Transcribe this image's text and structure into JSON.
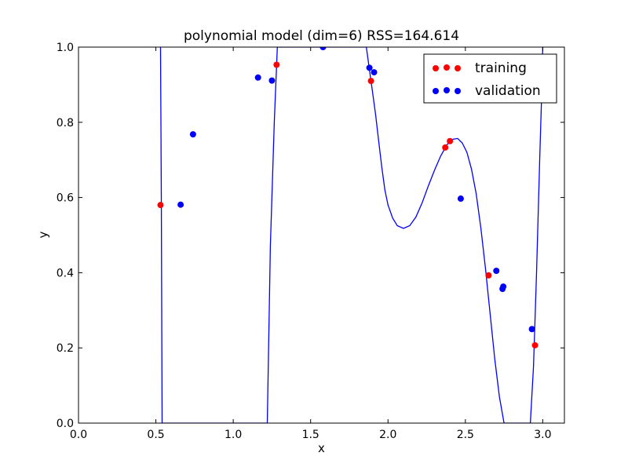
{
  "chart_data": {
    "type": "scatter",
    "title": "polynomial model (dim=6) RSS=164.614",
    "xlabel": "x",
    "ylabel": "y",
    "xlim": [
      0.0,
      3.14
    ],
    "ylim": [
      0.0,
      1.0
    ],
    "xticks": [
      "0.0",
      "0.5",
      "1.0",
      "1.5",
      "2.0",
      "2.5",
      "3.0"
    ],
    "xtick_values": [
      0.0,
      0.5,
      1.0,
      1.5,
      2.0,
      2.5,
      3.0
    ],
    "yticks": [
      "0.0",
      "0.2",
      "0.4",
      "0.6",
      "0.8",
      "1.0"
    ],
    "ytick_values": [
      0.0,
      0.2,
      0.4,
      0.6,
      0.8,
      1.0
    ],
    "grid": false,
    "legend_position": "top-right",
    "series": [
      {
        "name": "training",
        "color": "#ff0000",
        "points": [
          [
            0.53,
            0.58
          ],
          [
            1.28,
            0.953
          ],
          [
            1.89,
            0.91
          ],
          [
            2.37,
            0.733
          ],
          [
            2.4,
            0.75
          ],
          [
            2.65,
            0.393
          ],
          [
            2.95,
            0.207
          ]
        ]
      },
      {
        "name": "validation",
        "color": "#0000ff",
        "points": [
          [
            0.66,
            0.581
          ],
          [
            0.74,
            0.768
          ],
          [
            1.16,
            0.919
          ],
          [
            1.25,
            0.911
          ],
          [
            1.58,
            1.0
          ],
          [
            1.88,
            0.945
          ],
          [
            1.91,
            0.933
          ],
          [
            2.47,
            0.597
          ],
          [
            2.7,
            0.405
          ],
          [
            2.74,
            0.357
          ],
          [
            2.745,
            0.363
          ],
          [
            2.93,
            0.25
          ]
        ]
      },
      {
        "name": "polynomial model",
        "kind": "line",
        "color": "#0000ff",
        "points": [
          [
            0.53,
            1.0
          ],
          [
            0.535,
            0.6
          ],
          [
            0.54,
            0.0
          ],
          [
            1.22,
            0.0
          ],
          [
            1.24,
            0.47
          ],
          [
            1.265,
            0.8
          ],
          [
            1.285,
            1.0
          ],
          [
            1.86,
            1.0
          ],
          [
            1.88,
            0.94
          ],
          [
            1.9,
            0.88
          ],
          [
            1.92,
            0.82
          ],
          [
            1.94,
            0.75
          ],
          [
            1.96,
            0.68
          ],
          [
            1.98,
            0.62
          ],
          [
            2.0,
            0.58
          ],
          [
            2.03,
            0.545
          ],
          [
            2.06,
            0.525
          ],
          [
            2.1,
            0.518
          ],
          [
            2.14,
            0.525
          ],
          [
            2.18,
            0.548
          ],
          [
            2.22,
            0.585
          ],
          [
            2.26,
            0.63
          ],
          [
            2.3,
            0.672
          ],
          [
            2.34,
            0.71
          ],
          [
            2.38,
            0.74
          ],
          [
            2.42,
            0.755
          ],
          [
            2.45,
            0.757
          ],
          [
            2.48,
            0.745
          ],
          [
            2.51,
            0.72
          ],
          [
            2.54,
            0.675
          ],
          [
            2.57,
            0.61
          ],
          [
            2.6,
            0.52
          ],
          [
            2.63,
            0.41
          ],
          [
            2.66,
            0.29
          ],
          [
            2.69,
            0.17
          ],
          [
            2.72,
            0.07
          ],
          [
            2.75,
            0.0
          ],
          [
            2.92,
            0.0
          ],
          [
            2.94,
            0.15
          ],
          [
            2.96,
            0.4
          ],
          [
            2.98,
            0.7
          ],
          [
            2.995,
            0.9
          ],
          [
            3.0,
            1.0
          ]
        ]
      }
    ]
  }
}
